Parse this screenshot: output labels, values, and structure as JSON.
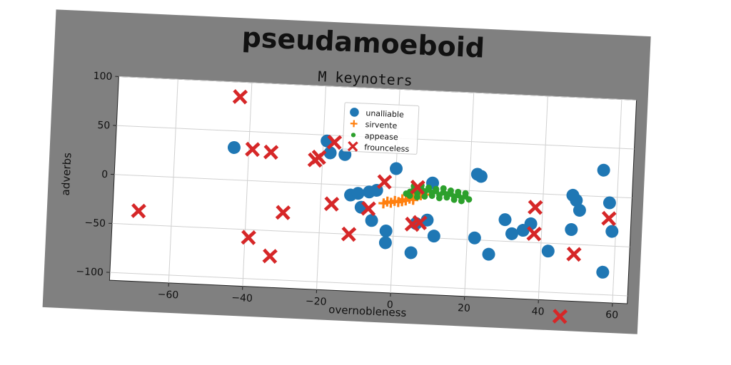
{
  "chart_data": {
    "type": "scatter",
    "suptitle": "pseudamoeboid",
    "title": "M keynoters",
    "xlabel": "overnobleness",
    "ylabel": "adverbs",
    "xlim": [
      -76,
      64
    ],
    "ylim": [
      -108,
      100
    ],
    "xticks": [
      -60,
      -40,
      -20,
      0,
      20,
      40,
      60
    ],
    "yticks": [
      -100,
      -50,
      0,
      50,
      100
    ],
    "grid": true,
    "legend_position": "upper-center",
    "series": [
      {
        "name": "unalliable",
        "marker": "circle",
        "color": "#1f77b4",
        "points": [
          [
            -44,
            33
          ],
          [
            -19,
            44
          ],
          [
            -18,
            32
          ],
          [
            -14,
            31
          ],
          [
            0,
            19
          ],
          [
            10,
            6
          ],
          [
            23,
            15
          ],
          [
            22,
            17
          ],
          [
            -12,
            -10
          ],
          [
            -10,
            -8
          ],
          [
            -7,
            -6
          ],
          [
            -5,
            -4
          ],
          [
            -9,
            -22
          ],
          [
            -6,
            -35
          ],
          [
            -2,
            -45
          ],
          [
            -2,
            -57
          ],
          [
            5,
            -66
          ],
          [
            6,
            -36
          ],
          [
            9,
            -32
          ],
          [
            11,
            -48
          ],
          [
            22,
            -48
          ],
          [
            26,
            -64
          ],
          [
            30,
            -28
          ],
          [
            32,
            -42
          ],
          [
            35,
            -38
          ],
          [
            37,
            -31
          ],
          [
            42,
            -58
          ],
          [
            48,
            -35
          ],
          [
            48,
            0
          ],
          [
            49,
            -5
          ],
          [
            50,
            -15
          ],
          [
            56,
            27
          ],
          [
            58,
            -6
          ],
          [
            59,
            -35
          ],
          [
            57,
            -77
          ]
        ]
      },
      {
        "name": "sirvente",
        "marker": "plus",
        "color": "#ff7f0e",
        "points": [
          [
            -3,
            -17
          ],
          [
            -1,
            -16
          ],
          [
            0,
            -14
          ],
          [
            1,
            -15
          ],
          [
            2,
            -12
          ],
          [
            3,
            -13
          ],
          [
            4,
            -11
          ],
          [
            4,
            -9
          ],
          [
            5,
            -10
          ],
          [
            6,
            -8
          ],
          [
            7,
            -7
          ],
          [
            8,
            -6
          ],
          [
            -2,
            -15
          ],
          [
            2,
            -14
          ],
          [
            5,
            -12
          ]
        ]
      },
      {
        "name": "appease",
        "marker": "dot",
        "color": "#2ca02c",
        "points": [
          [
            4,
            -4
          ],
          [
            5,
            -2
          ],
          [
            6,
            -5
          ],
          [
            7,
            0
          ],
          [
            8,
            -3
          ],
          [
            9,
            -1
          ],
          [
            10,
            -4
          ],
          [
            11,
            -2
          ],
          [
            12,
            -6
          ],
          [
            13,
            -3
          ],
          [
            14,
            -5
          ],
          [
            15,
            -4
          ],
          [
            16,
            -7
          ],
          [
            17,
            -5
          ],
          [
            18,
            -8
          ],
          [
            19,
            -6
          ],
          [
            6,
            -9
          ],
          [
            8,
            -8
          ],
          [
            10,
            -7
          ],
          [
            12,
            -9
          ],
          [
            14,
            -8
          ],
          [
            16,
            -10
          ],
          [
            18,
            -11
          ],
          [
            20,
            -9
          ],
          [
            5,
            2
          ],
          [
            7,
            3
          ],
          [
            9,
            1
          ],
          [
            11,
            0
          ],
          [
            13,
            1
          ],
          [
            15,
            -1
          ],
          [
            17,
            -2
          ],
          [
            19,
            -3
          ],
          [
            3,
            -6
          ],
          [
            4,
            -8
          ]
        ]
      },
      {
        "name": "frounceless",
        "marker": "x",
        "color": "#d62728",
        "points": [
          [
            -43,
            85
          ],
          [
            -39,
            32
          ],
          [
            -34,
            30
          ],
          [
            -17,
            43
          ],
          [
            -22,
            24
          ],
          [
            -21,
            27
          ],
          [
            -30,
            -31
          ],
          [
            -17,
            -20
          ],
          [
            -12,
            -50
          ],
          [
            -7,
            -23
          ],
          [
            -3,
            5
          ],
          [
            6,
            1
          ],
          [
            5,
            -37
          ],
          [
            7,
            -35
          ],
          [
            -69,
            -36
          ],
          [
            -39,
            -58
          ],
          [
            -33,
            -76
          ],
          [
            38,
            -14
          ],
          [
            38,
            -41
          ],
          [
            49,
            -60
          ],
          [
            58,
            -22
          ],
          [
            46,
            -124
          ]
        ]
      }
    ]
  },
  "colors": {
    "frame_bg": "#808080",
    "plot_bg": "#ffffff",
    "grid": "#d0d0d0"
  }
}
